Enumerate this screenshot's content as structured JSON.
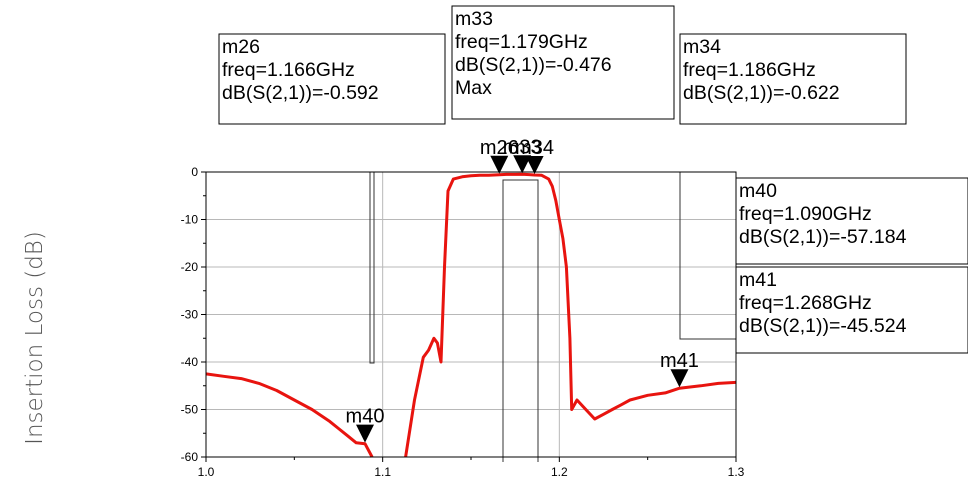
{
  "chart_data": {
    "type": "line",
    "title": "",
    "xlabel": "",
    "ylabel": "Insertion Loss (dB)",
    "xlim": [
      1.0,
      1.3
    ],
    "ylim": [
      -60,
      0
    ],
    "x_ticks": [
      "1.0",
      "1.1",
      "1.2",
      "1.3"
    ],
    "y_ticks": [
      "0",
      "-10",
      "-20",
      "-30",
      "-40",
      "-50",
      "-60"
    ],
    "grid": true,
    "series": [
      {
        "name": "",
        "color": "#e8140f",
        "x": [
          1.0,
          1.01,
          1.02,
          1.03,
          1.04,
          1.05,
          1.06,
          1.07,
          1.075,
          1.08,
          1.085,
          1.09,
          1.094,
          1.113,
          1.118,
          1.123,
          1.126,
          1.129,
          1.131,
          1.133,
          1.135,
          1.137,
          1.14,
          1.145,
          1.15,
          1.155,
          1.16,
          1.166,
          1.17,
          1.175,
          1.179,
          1.183,
          1.186,
          1.19,
          1.194,
          1.196,
          1.198,
          1.2,
          1.202,
          1.204,
          1.206,
          1.207,
          1.21,
          1.215,
          1.22,
          1.225,
          1.23,
          1.235,
          1.24,
          1.25,
          1.26,
          1.268,
          1.28,
          1.29,
          1.3
        ],
        "y": [
          -42.5,
          -43,
          -43.5,
          -44.5,
          -46,
          -48,
          -50,
          -52.5,
          -54,
          -55.5,
          -57,
          -57.2,
          -60,
          -60,
          -48,
          -39,
          -37.5,
          -35,
          -36,
          -40,
          -20,
          -4,
          -1.5,
          -1,
          -0.8,
          -0.7,
          -0.7,
          -0.592,
          -0.5,
          -0.5,
          -0.476,
          -0.55,
          -0.622,
          -0.7,
          -1.5,
          -3,
          -6,
          -10,
          -14,
          -20,
          -35,
          -50,
          -48,
          -50,
          -52,
          -51,
          -50,
          -49,
          -48,
          -47,
          -46.5,
          -45.524,
          -45,
          -44.5,
          -44.3
        ]
      }
    ],
    "markers": [
      {
        "name": "m26",
        "freq": 1.166,
        "value": -0.592,
        "box": [
          "m26",
          "freq=1.166GHz",
          "dB(S(2,1))=-0.592"
        ]
      },
      {
        "name": "m33",
        "freq": 1.179,
        "value": -0.476,
        "box": [
          "m33",
          "freq=1.179GHz",
          "dB(S(2,1))=-0.476",
          "Max"
        ]
      },
      {
        "name": "m34",
        "freq": 1.186,
        "value": -0.622,
        "box": [
          "m34",
          "freq=1.186GHz",
          "dB(S(2,1))=-0.622"
        ]
      },
      {
        "name": "m40",
        "freq": 1.09,
        "value": -57.184,
        "box": [
          "m40",
          "freq=1.090GHz",
          "dB(S(2,1))=-57.184"
        ]
      },
      {
        "name": "m41",
        "freq": 1.268,
        "value": -45.524,
        "box": [
          "m41",
          "freq=1.268GHz",
          "dB(S(2,1))=-45.524"
        ]
      }
    ]
  }
}
